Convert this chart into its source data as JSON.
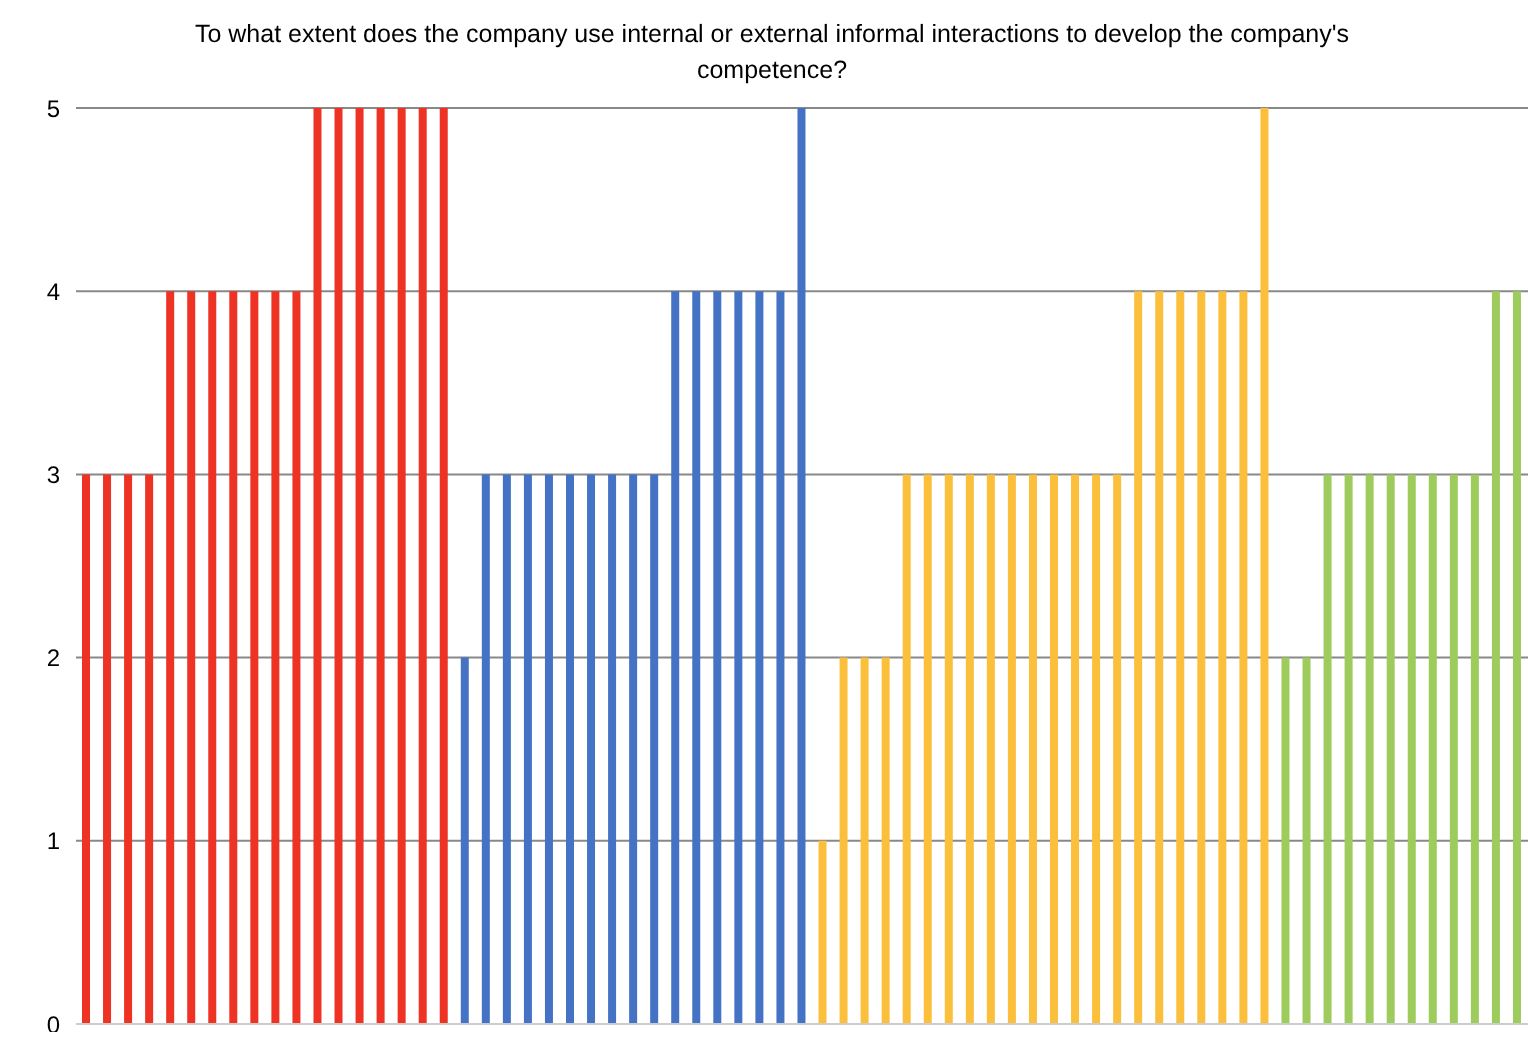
{
  "chart_data": {
    "type": "bar",
    "title": "To what extent does the company use internal or external informal interactions to develop the company's competence?",
    "categories": [
      null,
      null,
      null,
      null,
      null,
      null,
      null,
      null,
      null,
      null,
      null,
      null,
      null,
      null,
      null,
      null,
      null,
      null,
      null,
      null,
      null,
      null,
      null,
      null,
      null,
      null,
      null,
      null,
      null,
      null,
      null,
      null,
      null,
      null,
      null,
      null,
      null,
      null,
      null,
      null,
      null,
      null,
      null,
      null,
      null,
      null,
      null,
      null,
      null,
      null,
      null,
      null,
      null,
      null,
      null,
      null,
      null,
      null,
      null,
      null,
      null,
      null,
      null,
      null,
      null,
      null,
      null,
      null,
      null
    ],
    "values": [
      3,
      3,
      3,
      3,
      4,
      4,
      4,
      4,
      4,
      4,
      4,
      5,
      5,
      5,
      5,
      5,
      5,
      5,
      2,
      3,
      3,
      3,
      3,
      3,
      3,
      3,
      3,
      3,
      4,
      4,
      4,
      4,
      4,
      4,
      5,
      1,
      2,
      2,
      2,
      3,
      3,
      3,
      3,
      3,
      3,
      3,
      3,
      3,
      3,
      3,
      4,
      4,
      4,
      4,
      4,
      4,
      5,
      2,
      2,
      3,
      3,
      3,
      3,
      3,
      3,
      3,
      3,
      4,
      4
    ],
    "colors": [
      "#ee3224",
      "#ee3224",
      "#ee3224",
      "#ee3224",
      "#ee3224",
      "#ee3224",
      "#ee3224",
      "#ee3224",
      "#ee3224",
      "#ee3224",
      "#ee3224",
      "#ee3224",
      "#ee3224",
      "#ee3224",
      "#ee3224",
      "#ee3224",
      "#ee3224",
      "#ee3224",
      "#4472c4",
      "#4472c4",
      "#4472c4",
      "#4472c4",
      "#4472c4",
      "#4472c4",
      "#4472c4",
      "#4472c4",
      "#4472c4",
      "#4472c4",
      "#4472c4",
      "#4472c4",
      "#4472c4",
      "#4472c4",
      "#4472c4",
      "#4472c4",
      "#4472c4",
      "#fbbf3c",
      "#fbbf3c",
      "#fbbf3c",
      "#fbbf3c",
      "#fbbf3c",
      "#fbbf3c",
      "#fbbf3c",
      "#fbbf3c",
      "#fbbf3c",
      "#fbbf3c",
      "#fbbf3c",
      "#fbbf3c",
      "#fbbf3c",
      "#fbbf3c",
      "#fbbf3c",
      "#fbbf3c",
      "#fbbf3c",
      "#fbbf3c",
      "#fbbf3c",
      "#fbbf3c",
      "#fbbf3c",
      "#fbbf3c",
      "#9dcb5c",
      "#9dcb5c",
      "#9dcb5c",
      "#9dcb5c",
      "#9dcb5c",
      "#9dcb5c",
      "#9dcb5c",
      "#9dcb5c",
      "#9dcb5c",
      "#9dcb5c",
      "#9dcb5c",
      "#9dcb5c"
    ],
    "ylim": [
      0,
      5
    ],
    "yticks": [
      0,
      1,
      2,
      3,
      4,
      5
    ],
    "grid": "y"
  }
}
